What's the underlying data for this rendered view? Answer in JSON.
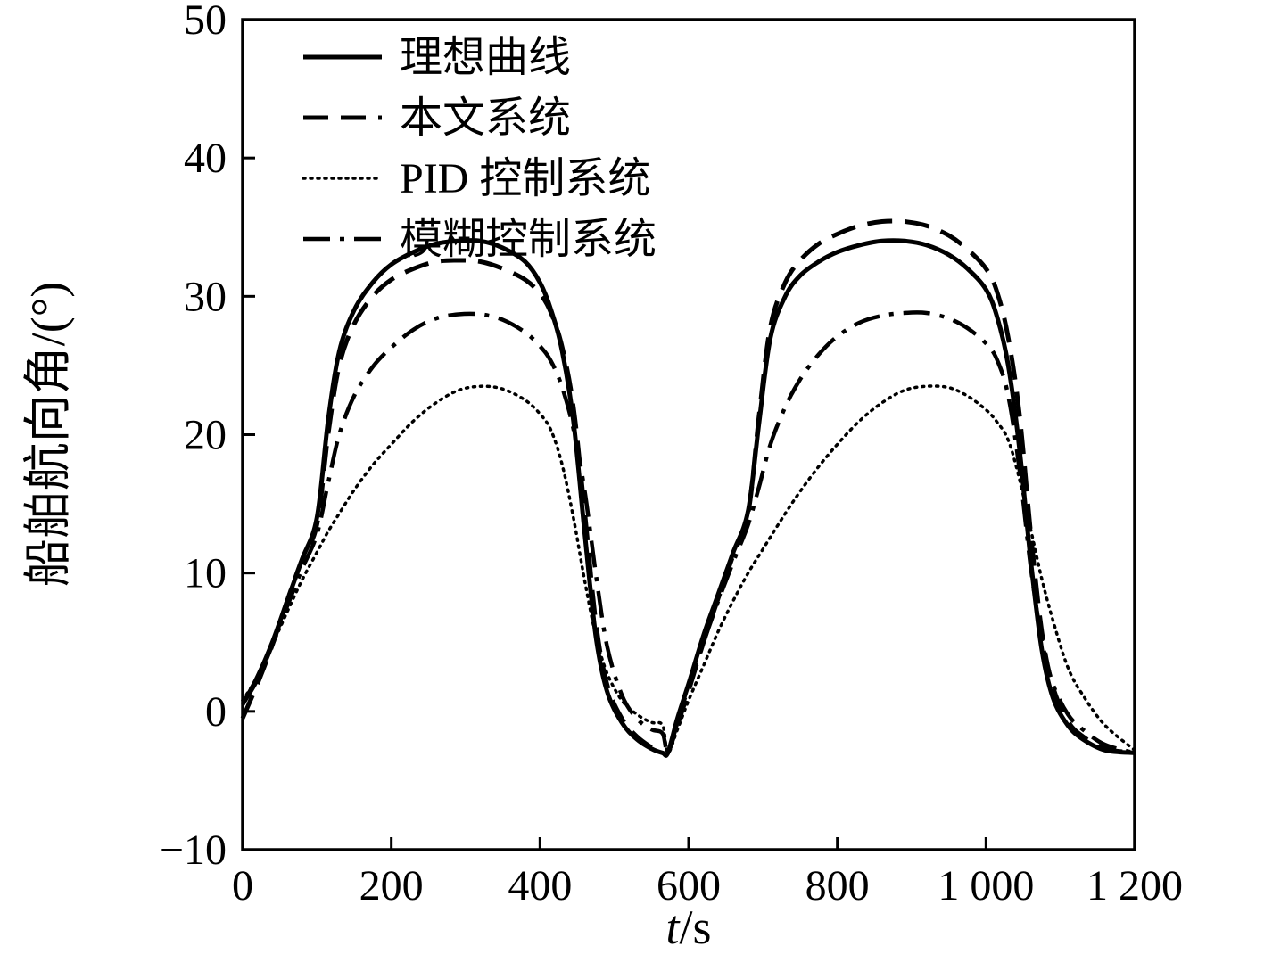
{
  "chart_data": {
    "type": "line",
    "title": "",
    "xlabel": "t/s",
    "xlabel_var": "t",
    "xlabel_unit": "/s",
    "ylabel": "船舶航向角/(°)",
    "xlim": [
      0,
      1200
    ],
    "ylim": [
      -10,
      50
    ],
    "grid": false,
    "legend_position": "top-left",
    "xticks": [
      {
        "v": 0,
        "label": "0"
      },
      {
        "v": 200,
        "label": "200"
      },
      {
        "v": 400,
        "label": "400"
      },
      {
        "v": 600,
        "label": "600"
      },
      {
        "v": 800,
        "label": "800"
      },
      {
        "v": 1000,
        "label": "1 000"
      },
      {
        "v": 1200,
        "label": "1 200"
      }
    ],
    "yticks": [
      {
        "v": -10,
        "label": "−10"
      },
      {
        "v": 0,
        "label": "0"
      },
      {
        "v": 10,
        "label": "10"
      },
      {
        "v": 20,
        "label": "20"
      },
      {
        "v": 30,
        "label": "30"
      },
      {
        "v": 40,
        "label": "40"
      },
      {
        "v": 50,
        "label": "50"
      }
    ],
    "x": [
      0,
      20,
      40,
      60,
      80,
      100,
      115,
      130,
      150,
      175,
      200,
      230,
      260,
      290,
      320,
      350,
      380,
      400,
      415,
      430,
      445,
      460,
      475,
      490,
      510,
      530,
      550,
      565,
      572,
      585,
      600,
      620,
      640,
      660,
      680,
      695,
      710,
      730,
      750,
      775,
      800,
      830,
      860,
      890,
      920,
      950,
      975,
      1000,
      1015,
      1030,
      1045,
      1060,
      1075,
      1090,
      1110,
      1130,
      1160,
      1200
    ],
    "series": [
      {
        "name": "理想曲线",
        "style": "solid",
        "values": [
          0.5,
          2.5,
          5.0,
          8.0,
          11.0,
          14.0,
          21.0,
          26.0,
          29.0,
          31.0,
          32.3,
          33.2,
          33.8,
          34.0,
          34.0,
          33.5,
          32.5,
          31.0,
          29.0,
          26.0,
          21.0,
          13.0,
          5.5,
          1.5,
          -0.8,
          -2.0,
          -2.7,
          -3.0,
          -3.0,
          -0.5,
          2.0,
          5.5,
          8.5,
          11.5,
          14.5,
          21.0,
          27.0,
          30.0,
          31.5,
          32.5,
          33.2,
          33.7,
          34.0,
          34.0,
          33.7,
          33.0,
          32.0,
          30.5,
          28.5,
          25.0,
          19.0,
          11.0,
          4.5,
          1.0,
          -1.0,
          -2.0,
          -2.8,
          -3.0
        ]
      },
      {
        "name": "本文系统",
        "style": "dashed",
        "values": [
          -0.5,
          2.0,
          4.8,
          8.0,
          11.0,
          13.5,
          20.0,
          25.0,
          28.0,
          30.0,
          31.2,
          32.0,
          32.5,
          32.6,
          32.5,
          32.0,
          31.2,
          30.2,
          28.8,
          26.3,
          22.0,
          14.5,
          6.5,
          2.0,
          -0.5,
          -1.8,
          -2.6,
          -3.0,
          -3.0,
          -1.0,
          1.5,
          5.0,
          8.2,
          11.3,
          14.3,
          21.5,
          27.8,
          31.0,
          32.6,
          33.8,
          34.5,
          35.1,
          35.4,
          35.4,
          35.1,
          34.4,
          33.4,
          32.0,
          30.3,
          27.0,
          21.5,
          13.0,
          5.8,
          1.8,
          -0.7,
          -1.8,
          -2.7,
          -3.0
        ]
      },
      {
        "name": "PID 控制系统",
        "style": "dotted",
        "values": [
          0.8,
          2.5,
          4.8,
          7.2,
          9.5,
          11.5,
          13.0,
          14.3,
          16.0,
          17.8,
          19.3,
          21.0,
          22.3,
          23.2,
          23.5,
          23.3,
          22.5,
          21.5,
          20.3,
          17.8,
          14.0,
          9.5,
          5.5,
          2.8,
          0.8,
          -0.2,
          -0.8,
          -1.0,
          -3.0,
          -1.3,
          0.8,
          3.3,
          5.8,
          8.0,
          10.0,
          11.3,
          12.6,
          14.3,
          15.9,
          17.7,
          19.3,
          21.0,
          22.3,
          23.2,
          23.5,
          23.4,
          22.8,
          21.8,
          20.9,
          19.6,
          16.8,
          13.2,
          9.6,
          6.6,
          3.2,
          1.2,
          -1.0,
          -2.8
        ]
      },
      {
        "name": "模糊控制系统",
        "style": "dashdot",
        "values": [
          0.5,
          2.3,
          4.8,
          7.6,
          10.3,
          12.8,
          16.5,
          20.0,
          22.8,
          24.9,
          26.3,
          27.6,
          28.4,
          28.7,
          28.7,
          28.3,
          27.4,
          26.4,
          25.3,
          23.4,
          20.4,
          16.0,
          10.0,
          4.8,
          1.2,
          -0.5,
          -1.3,
          -1.6,
          -3.0,
          -0.8,
          1.8,
          5.0,
          8.0,
          10.8,
          13.5,
          16.3,
          19.3,
          22.0,
          24.0,
          25.8,
          27.1,
          28.1,
          28.6,
          28.8,
          28.8,
          28.4,
          27.7,
          26.6,
          25.4,
          22.8,
          17.5,
          10.5,
          5.2,
          2.0,
          -0.2,
          -1.3,
          -2.4,
          -3.0
        ]
      }
    ]
  },
  "legend": {
    "items": [
      {
        "label": "理想曲线",
        "style": "solid"
      },
      {
        "label": "本文系统",
        "style": "dashed"
      },
      {
        "label": "PID 控制系统",
        "style": "dotted"
      },
      {
        "label": "模糊控制系统",
        "style": "dashdot"
      }
    ]
  },
  "colors": {
    "ink": "#000000",
    "background": "#ffffff"
  }
}
